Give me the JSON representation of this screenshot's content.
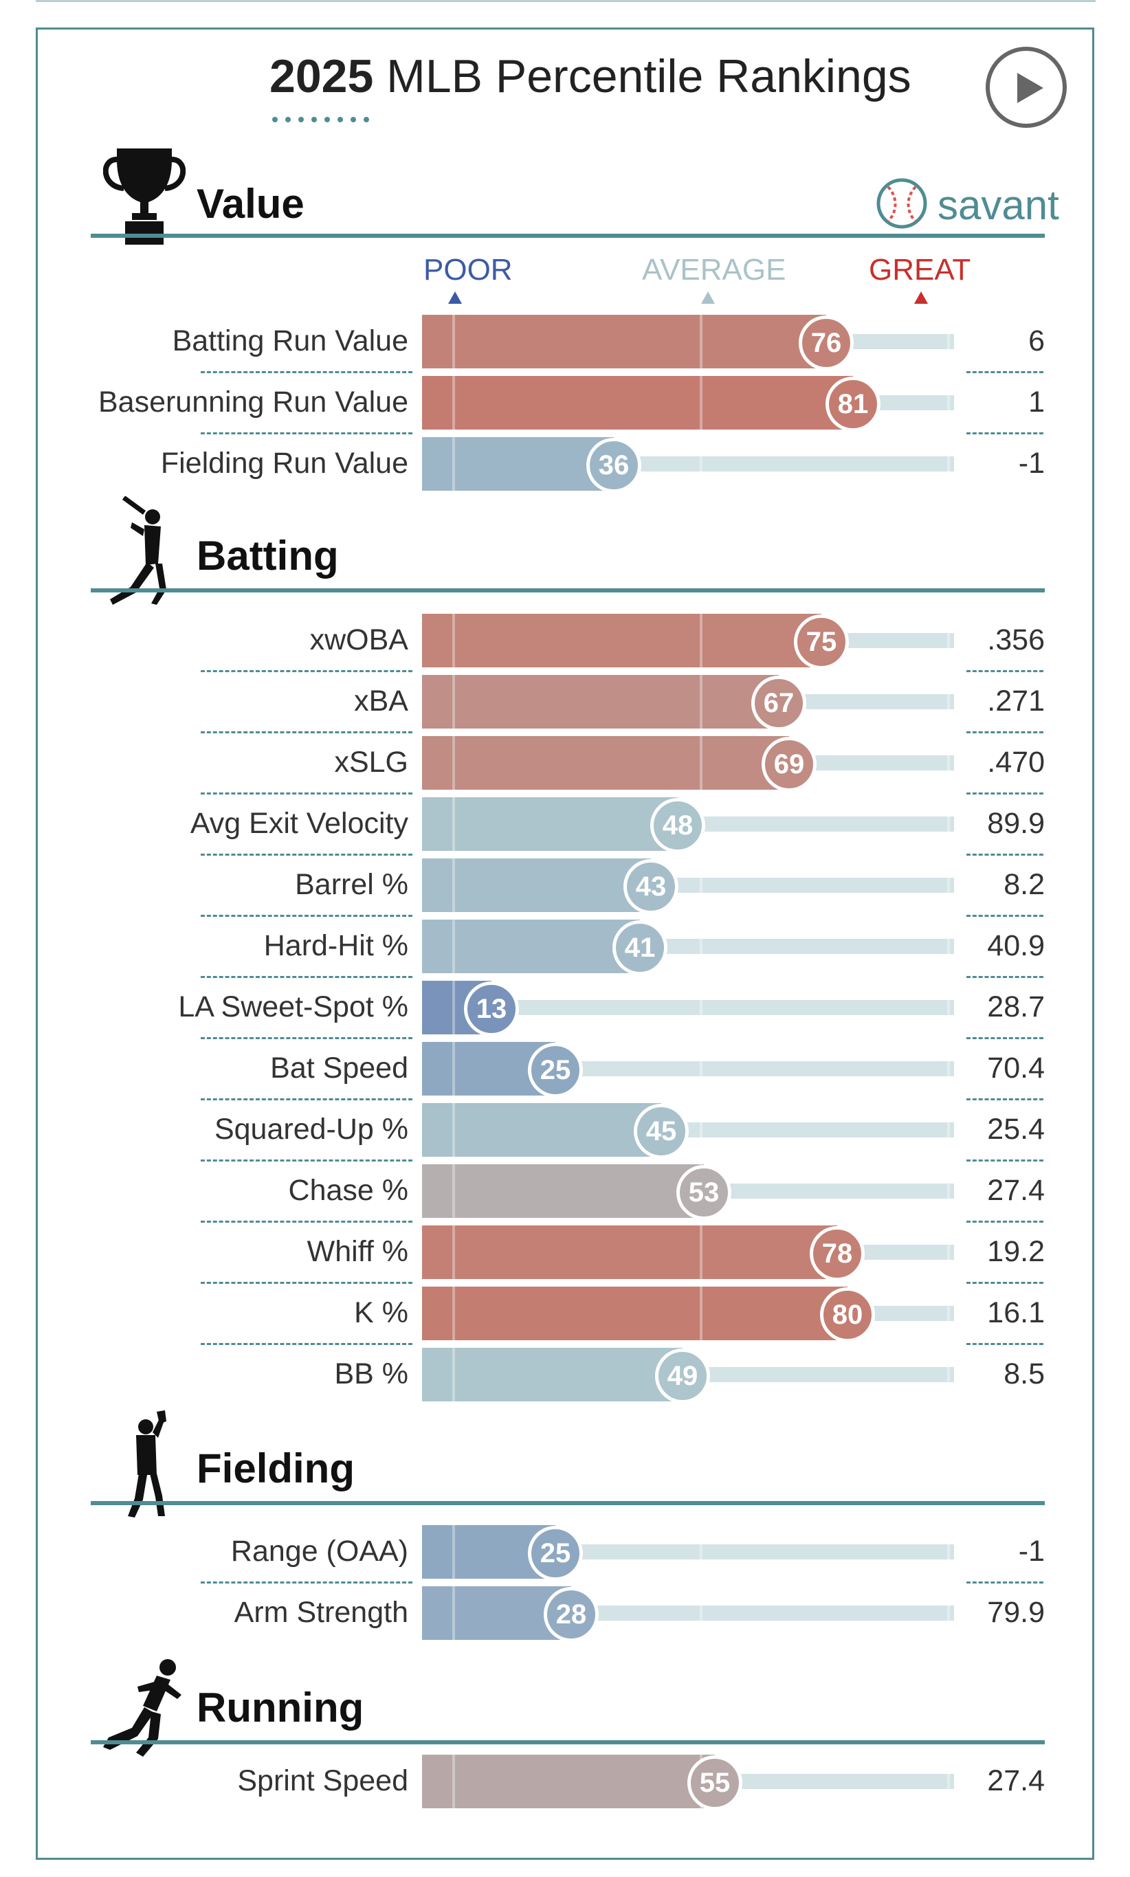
{
  "title": {
    "year": "2025",
    "text": " MLB Percentile Rankings"
  },
  "icons": {
    "play": "play-icon",
    "value": "trophy-icon",
    "batting": "batter-icon",
    "fielding": "fielder-icon",
    "running": "runner-icon",
    "savant": "baseball-icon"
  },
  "brand": {
    "name": "savant"
  },
  "legend": {
    "poor": "POOR",
    "average": "AVERAGE",
    "great": "GREAT"
  },
  "colors": {
    "accent": "#4f8c93",
    "poor": "#3d5aa6",
    "average": "#a9c3c8",
    "great": "#c8302b",
    "track": "#d4e3e6"
  },
  "chart_data": {
    "type": "bar",
    "orientation": "horizontal",
    "xlim": [
      0,
      100
    ],
    "sections": [
      {
        "name": "Value",
        "rows": [
          {
            "label": "Batting Run Value",
            "percentile": 76,
            "value": "6"
          },
          {
            "label": "Baserunning Run Value",
            "percentile": 81,
            "value": "1"
          },
          {
            "label": "Fielding Run Value",
            "percentile": 36,
            "value": "-1"
          }
        ]
      },
      {
        "name": "Batting",
        "rows": [
          {
            "label": "xwOBA",
            "percentile": 75,
            "value": ".356"
          },
          {
            "label": "xBA",
            "percentile": 67,
            "value": ".271"
          },
          {
            "label": "xSLG",
            "percentile": 69,
            "value": ".470"
          },
          {
            "label": "Avg Exit Velocity",
            "percentile": 48,
            "value": "89.9"
          },
          {
            "label": "Barrel %",
            "percentile": 43,
            "value": "8.2"
          },
          {
            "label": "Hard-Hit %",
            "percentile": 41,
            "value": "40.9"
          },
          {
            "label": "LA Sweet-Spot %",
            "percentile": 13,
            "value": "28.7"
          },
          {
            "label": "Bat Speed",
            "percentile": 25,
            "value": "70.4"
          },
          {
            "label": "Squared-Up %",
            "percentile": 45,
            "value": "25.4"
          },
          {
            "label": "Chase %",
            "percentile": 53,
            "value": "27.4"
          },
          {
            "label": "Whiff %",
            "percentile": 78,
            "value": "19.2"
          },
          {
            "label": "K %",
            "percentile": 80,
            "value": "16.1"
          },
          {
            "label": "BB %",
            "percentile": 49,
            "value": "8.5"
          }
        ]
      },
      {
        "name": "Fielding",
        "rows": [
          {
            "label": "Range (OAA)",
            "percentile": 25,
            "value": "-1"
          },
          {
            "label": "Arm Strength",
            "percentile": 28,
            "value": "79.9"
          }
        ]
      },
      {
        "name": "Running",
        "rows": [
          {
            "label": "Sprint Speed",
            "percentile": 55,
            "value": "27.4"
          }
        ]
      }
    ]
  }
}
